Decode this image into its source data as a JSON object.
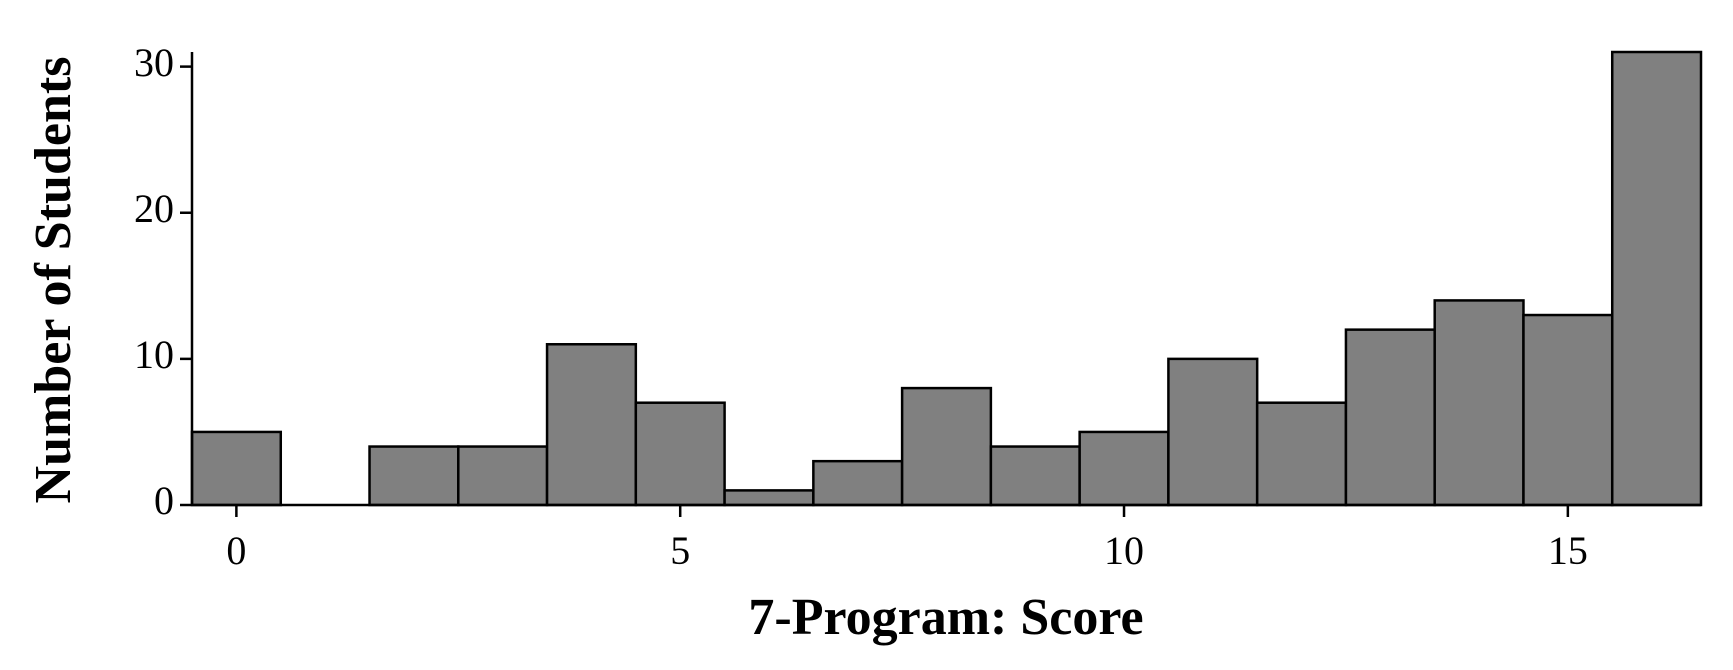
{
  "chart_data": {
    "type": "histogram",
    "xlabel": "7-Program: Score",
    "ylabel": "Number of Students",
    "bins": [
      -0.5,
      0.5,
      1.5,
      2.5,
      3.5,
      4.5,
      5.5,
      6.5,
      7.5,
      8.5,
      9.5,
      10.5,
      11.5,
      12.5,
      13.5,
      14.5,
      15.5,
      16.5
    ],
    "values": [
      5,
      0,
      4,
      4,
      11,
      7,
      1,
      3,
      8,
      4,
      5,
      10,
      7,
      12,
      14,
      13,
      31
    ],
    "color": "#808080",
    "xlim": [
      -0.5,
      16.5
    ],
    "xticks": [
      0,
      5,
      10,
      15
    ],
    "ylim": [
      0,
      31
    ],
    "yticks": [
      0,
      10,
      20,
      30
    ],
    "grid": false
  }
}
